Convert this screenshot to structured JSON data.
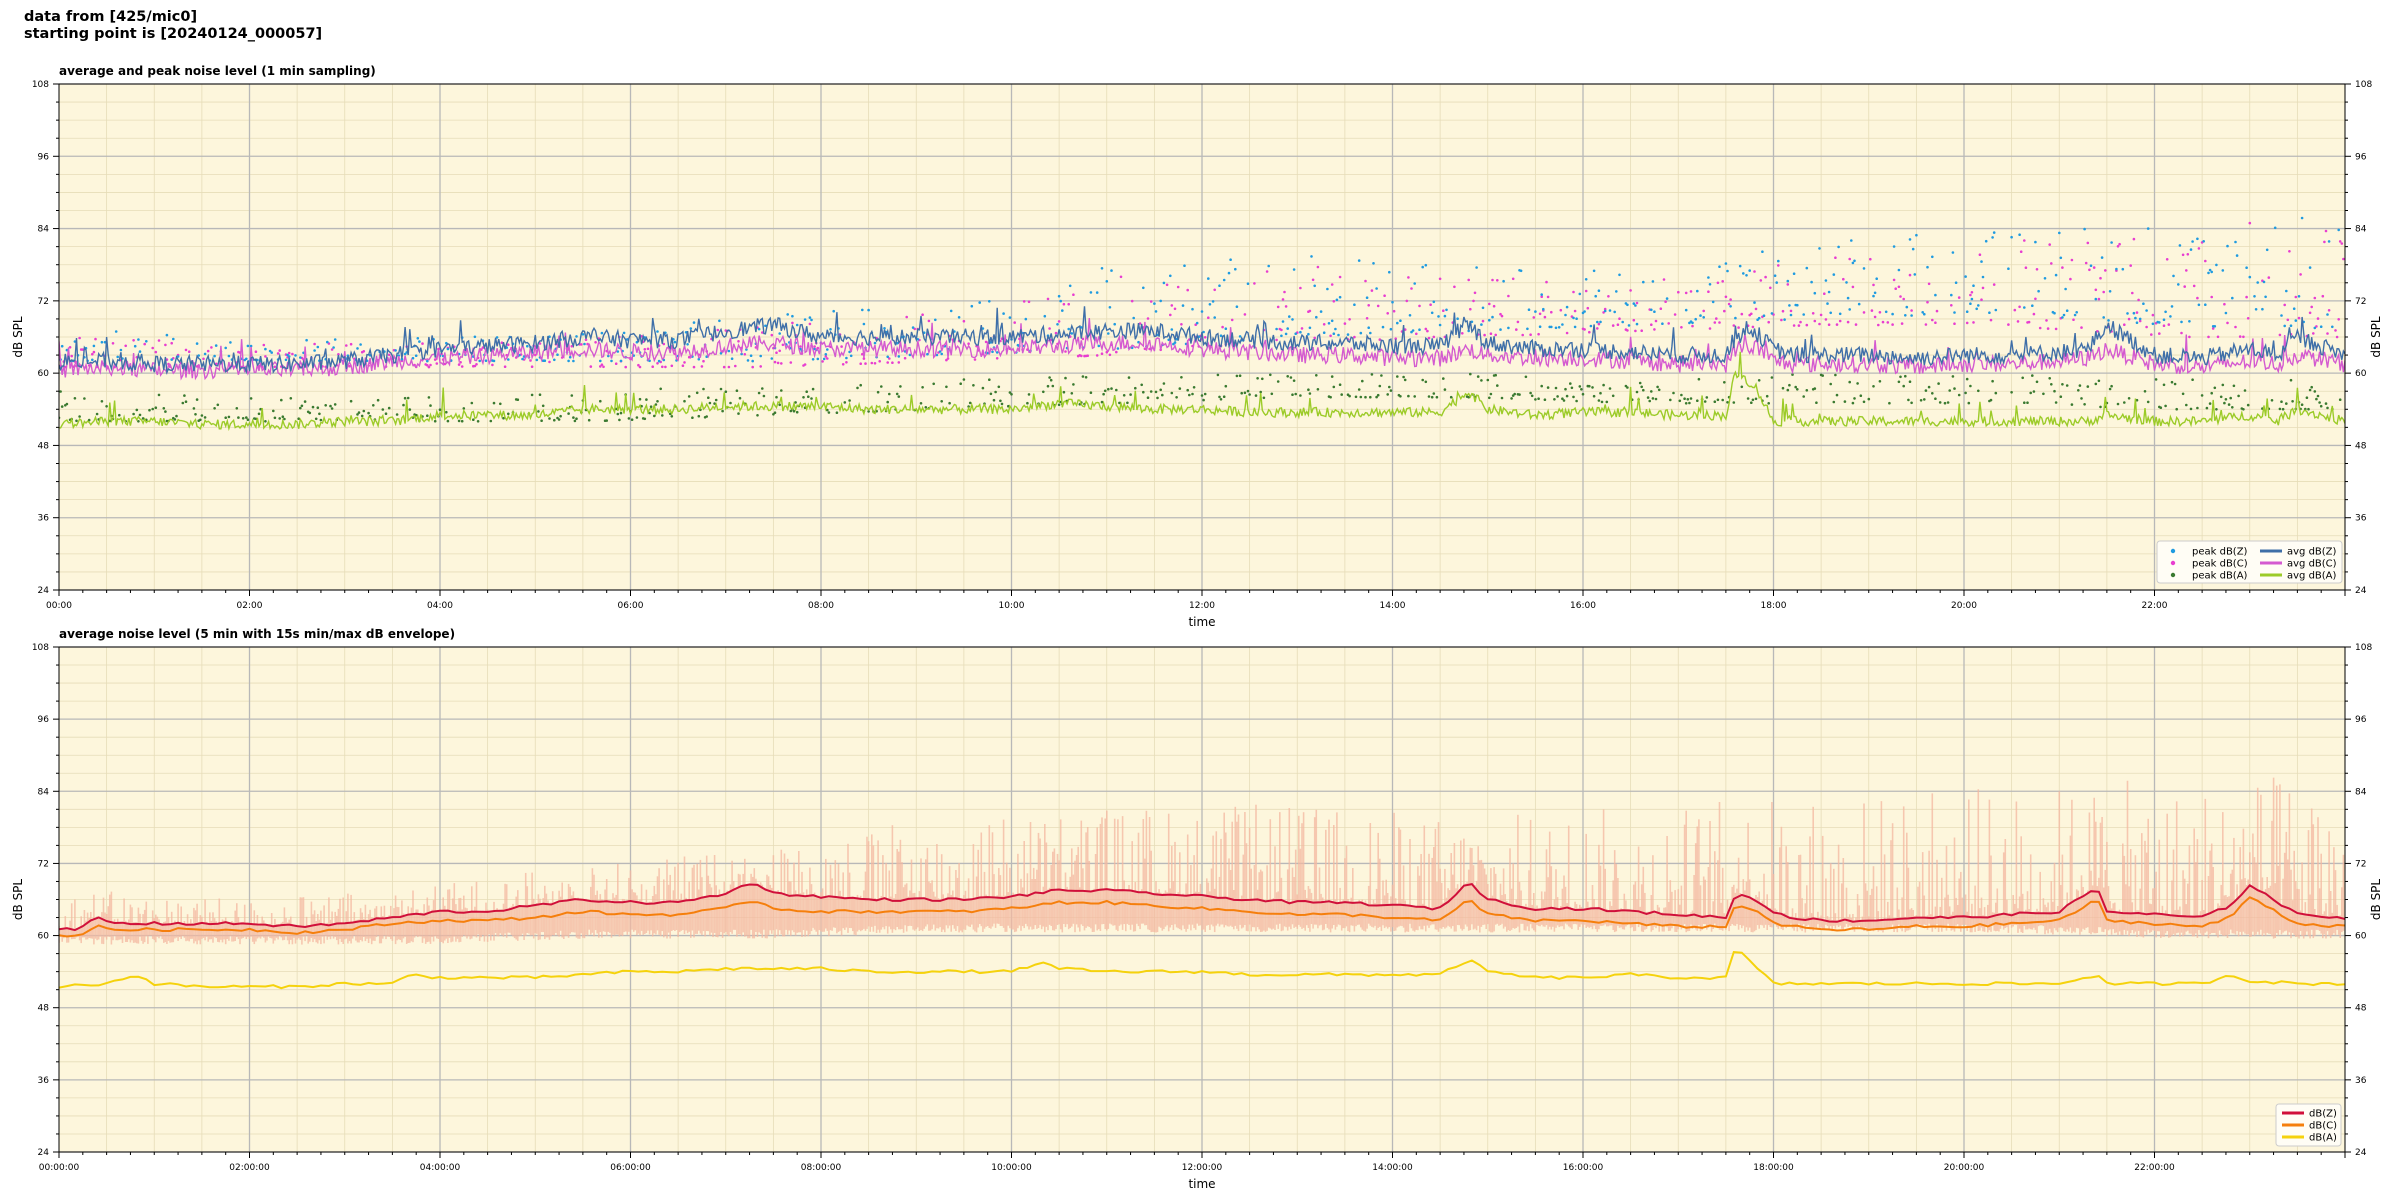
{
  "header": {
    "line1": "data from [425/mic0]",
    "line2": "starting point is [20240124_000057]"
  },
  "chart_data": [
    {
      "type": "scatter+line",
      "title": "average and peak noise level (1 min sampling)",
      "xlabel": "time",
      "ylabel": "dB SPL",
      "xlim_hours": [
        0,
        24
      ],
      "ylim": [
        24,
        108
      ],
      "yticks": [
        24,
        36,
        48,
        60,
        72,
        84,
        96,
        108
      ],
      "xticks": [
        "00:00",
        "02:00",
        "04:00",
        "06:00",
        "08:00",
        "10:00",
        "12:00",
        "14:00",
        "16:00",
        "18:00",
        "20:00",
        "22:00"
      ],
      "grid": true,
      "legend_position": "lower-right",
      "colors": {
        "background": "#fdf6dc",
        "peak_z": "#1f9be0",
        "peak_c": "#e83ed0",
        "peak_a": "#3a7a30",
        "avg_z": "#3f6fa8",
        "avg_c": "#d45ad0",
        "avg_a": "#9ccb28"
      },
      "legend": [
        {
          "label": "peak dB(Z)",
          "kind": "dot",
          "series": "peak_z"
        },
        {
          "label": "peak dB(C)",
          "kind": "dot",
          "series": "peak_c"
        },
        {
          "label": "peak dB(A)",
          "kind": "dot",
          "series": "peak_a"
        },
        {
          "label": "avg dB(Z)",
          "kind": "line",
          "series": "avg_z"
        },
        {
          "label": "avg dB(C)",
          "kind": "line",
          "series": "avg_c"
        },
        {
          "label": "avg dB(A)",
          "kind": "line",
          "series": "avg_a"
        }
      ],
      "series": [
        {
          "id": "avg_z",
          "x": [
            0,
            0.5,
            1,
            1.5,
            2,
            2.5,
            3,
            3.5,
            4,
            4.5,
            5,
            5.5,
            6,
            6.5,
            7,
            7.5,
            8,
            8.5,
            9,
            9.5,
            10,
            10.5,
            11,
            11.5,
            12,
            12.5,
            13,
            13.5,
            14,
            14.5,
            14.8,
            15,
            15.5,
            16,
            16.5,
            17,
            17.5,
            17.6,
            17.8,
            18,
            18.2,
            18.5,
            19,
            19.5,
            20,
            20.5,
            21,
            21.3,
            21.5,
            22,
            22.5,
            23,
            23.3,
            23.5,
            24
          ],
          "y": [
            62,
            62,
            61.5,
            61.5,
            61.5,
            61.5,
            62,
            63,
            64,
            64.5,
            65,
            66,
            65.5,
            65.5,
            67,
            68,
            66,
            66,
            66,
            66,
            66,
            66.5,
            67,
            67,
            66,
            65.5,
            65,
            65,
            64.5,
            64.5,
            68,
            65,
            64,
            64,
            63.5,
            63,
            63,
            66,
            67,
            64,
            63,
            63,
            63,
            62.5,
            63,
            63,
            63.5,
            64,
            68,
            63,
            62.5,
            64,
            63,
            66,
            63
          ]
        },
        {
          "id": "avg_c",
          "x": [
            0,
            0.5,
            1,
            1.5,
            2,
            2.5,
            3,
            3.5,
            4,
            4.5,
            5,
            5.5,
            6,
            6.5,
            7,
            7.5,
            8,
            8.5,
            9,
            9.5,
            10,
            10.5,
            11,
            11.5,
            12,
            12.5,
            13,
            13.5,
            14,
            14.5,
            14.8,
            15,
            15.5,
            16,
            16.5,
            17,
            17.5,
            17.6,
            17.8,
            18,
            18.2,
            18.5,
            19,
            19.5,
            20,
            20.5,
            21,
            21.3,
            21.5,
            22,
            22.5,
            23,
            23.3,
            23.5,
            24
          ],
          "y": [
            60.5,
            61,
            60.5,
            60.5,
            60.5,
            60.5,
            61,
            62,
            62.5,
            63,
            63.5,
            64,
            63.5,
            63.5,
            64.5,
            65,
            64,
            64,
            64,
            64,
            64,
            64.5,
            65,
            65,
            64,
            63.5,
            63,
            63,
            62.5,
            62.5,
            64,
            63,
            62.5,
            62.5,
            62,
            61.5,
            61.5,
            64,
            64.5,
            62,
            61.5,
            61.5,
            61.5,
            61,
            61.5,
            61.5,
            62,
            62.5,
            64,
            61.5,
            61,
            62,
            61.5,
            63,
            61.5
          ]
        },
        {
          "id": "avg_a",
          "x": [
            0,
            0.5,
            1,
            1.5,
            2,
            2.5,
            3,
            3.5,
            4,
            4.5,
            5,
            5.5,
            6,
            6.5,
            7,
            7.5,
            8,
            8.5,
            9,
            9.5,
            10,
            10.5,
            11,
            11.5,
            12,
            12.5,
            13,
            13.5,
            14,
            14.5,
            14.8,
            15,
            15.5,
            16,
            16.5,
            17,
            17.5,
            17.6,
            17.8,
            18,
            18.2,
            18.5,
            19,
            19.5,
            20,
            20.5,
            21,
            21.3,
            21.5,
            22,
            22.5,
            23,
            23.3,
            23.5,
            24
          ],
          "y": [
            51.5,
            52,
            52,
            51.5,
            51.5,
            51.5,
            52,
            52,
            53,
            53,
            53,
            54,
            54,
            54,
            54.5,
            54.5,
            54.5,
            54,
            54,
            54,
            54,
            55,
            54.5,
            54,
            54,
            53.5,
            53.5,
            53.5,
            53.5,
            53.5,
            57,
            54,
            53,
            53.5,
            53.5,
            53,
            53,
            60,
            58,
            52,
            52,
            52,
            52,
            52,
            52,
            52,
            52,
            52,
            53,
            52,
            52,
            53,
            52,
            54,
            52
          ]
        },
        {
          "id": "peak_z",
          "band_low": [
            62,
            62,
            62,
            62,
            62,
            63,
            64,
            66,
            67,
            68,
            69,
            70,
            68,
            67
          ],
          "band_high": [
            68,
            66,
            66,
            67,
            70,
            72,
            78,
            80,
            78,
            77,
            82,
            84,
            86,
            88
          ]
        },
        {
          "id": "peak_c",
          "band_low": [
            61,
            61,
            61,
            61,
            61,
            62,
            63,
            65,
            66,
            67,
            68,
            68,
            66,
            66
          ],
          "band_high": [
            66,
            65,
            65,
            66,
            68,
            70,
            76,
            78,
            76,
            75,
            80,
            82,
            84,
            86
          ]
        },
        {
          "id": "peak_a",
          "band_low": [
            52,
            52,
            52,
            52,
            53,
            54,
            55,
            56,
            56,
            55,
            55,
            55,
            54,
            54
          ],
          "band_high": [
            57,
            56,
            56,
            57,
            58,
            59,
            60,
            60,
            60,
            59,
            60,
            60,
            59,
            59
          ]
        }
      ]
    },
    {
      "type": "line",
      "title": "average noise level (5 min with 15s min/max dB envelope)",
      "xlabel": "time",
      "ylabel": "dB SPL",
      "xlim_hours": [
        0,
        24
      ],
      "ylim": [
        24,
        108
      ],
      "yticks": [
        24,
        36,
        48,
        60,
        72,
        84,
        96,
        108
      ],
      "xticks": [
        "00:00:00",
        "02:00:00",
        "04:00:00",
        "06:00:00",
        "08:00:00",
        "10:00:00",
        "12:00:00",
        "14:00:00",
        "16:00:00",
        "18:00:00",
        "20:00:00",
        "22:00:00"
      ],
      "grid": true,
      "legend_position": "lower-right",
      "colors": {
        "background": "#fdf6dc",
        "dBZ": "#d0103a",
        "dBC": "#f57f0c",
        "dBA": "#f5d20c",
        "envelope": "#f4b8a0"
      },
      "legend": [
        {
          "label": "dB(Z)",
          "series": "dBZ"
        },
        {
          "label": "dB(C)",
          "series": "dBC"
        },
        {
          "label": "dB(A)",
          "series": "dBA"
        }
      ],
      "series": [
        {
          "id": "dBZ",
          "x": [
            0,
            0.2,
            0.4,
            0.6,
            1,
            1.5,
            2,
            2.5,
            3,
            3.5,
            4,
            4.5,
            5,
            5.5,
            6,
            6.5,
            7,
            7.3,
            7.5,
            8,
            8.5,
            9,
            9.5,
            10,
            10.5,
            11,
            11.5,
            12,
            12.5,
            13,
            13.5,
            14,
            14.5,
            14.8,
            15,
            15.5,
            16,
            16.5,
            17,
            17.5,
            17.6,
            17.8,
            18,
            18.2,
            18.5,
            19,
            19.5,
            20,
            20.5,
            21,
            21.4,
            21.5,
            22,
            22.5,
            22.8,
            23,
            23.5,
            24
          ],
          "y": [
            61,
            61,
            63,
            62,
            62,
            62,
            62,
            61.5,
            62,
            63,
            64,
            64,
            65,
            66,
            65.5,
            65.5,
            67,
            69,
            67,
            66.5,
            66,
            66,
            66,
            66.5,
            67.5,
            67.5,
            67,
            66.5,
            66,
            65.5,
            65.5,
            65,
            64.5,
            69,
            66,
            64.5,
            64.5,
            64,
            63.5,
            63,
            67,
            66,
            64,
            63,
            62.5,
            62.5,
            63,
            63,
            63.5,
            64,
            68,
            64,
            63.5,
            63,
            65,
            68.5,
            63.5,
            63
          ]
        },
        {
          "id": "dBC",
          "x": [
            0,
            0.2,
            0.4,
            0.6,
            1,
            1.5,
            2,
            2.5,
            3,
            3.5,
            4,
            4.5,
            5,
            5.5,
            6,
            6.5,
            7,
            7.3,
            7.5,
            8,
            8.5,
            9,
            9.5,
            10,
            10.5,
            11,
            11.5,
            12,
            12.5,
            13,
            13.5,
            14,
            14.5,
            14.8,
            15,
            15.5,
            16,
            16.5,
            17,
            17.5,
            17.6,
            17.8,
            18,
            18.2,
            18.5,
            19,
            19.5,
            20,
            20.5,
            21,
            21.4,
            21.5,
            22,
            22.5,
            22.8,
            23,
            23.5,
            24
          ],
          "y": [
            60,
            60,
            61.5,
            61,
            61,
            61,
            61,
            60.5,
            61,
            62,
            62.5,
            62.5,
            63,
            64,
            63.5,
            63.5,
            64.5,
            66,
            64.5,
            64,
            64,
            64,
            64,
            64.5,
            65.5,
            65.5,
            65,
            64.5,
            64,
            63.5,
            63.5,
            63,
            62.5,
            66,
            63.5,
            62.5,
            62.5,
            62,
            61.5,
            61.5,
            65,
            64.5,
            62,
            61.5,
            61,
            61,
            61.5,
            61.5,
            62,
            62.5,
            66,
            62.5,
            62,
            61.5,
            63,
            66.5,
            62,
            61.5
          ]
        },
        {
          "id": "dBA",
          "x": [
            0,
            0.5,
            0.8,
            1,
            1.5,
            2,
            2.5,
            3,
            3.5,
            3.7,
            4,
            4.5,
            5,
            5.5,
            6,
            6.5,
            7,
            7.5,
            8,
            8.5,
            9,
            9.5,
            10,
            10.3,
            10.5,
            11,
            11.5,
            12,
            12.5,
            13,
            13.5,
            14,
            14.5,
            14.8,
            15,
            15.5,
            16,
            16.5,
            17,
            17.5,
            17.6,
            17.8,
            18,
            18.2,
            18.5,
            19,
            19.5,
            20,
            20.5,
            21,
            21.4,
            21.5,
            22,
            22.5,
            22.8,
            23,
            23.5,
            24
          ],
          "y": [
            51.5,
            52,
            53.5,
            52,
            51.5,
            51.5,
            51.5,
            52,
            52,
            53.5,
            53,
            53,
            53,
            53.5,
            54,
            54,
            54.5,
            54.5,
            54.5,
            54,
            54,
            54,
            54,
            55.5,
            54.5,
            54,
            54,
            54,
            53.5,
            53.5,
            53.5,
            53.5,
            53.5,
            56,
            54,
            53,
            53,
            53.5,
            53,
            53,
            58,
            55,
            52,
            52,
            52,
            52,
            52,
            52,
            52,
            52,
            53.5,
            52,
            52,
            52,
            53.5,
            52.5,
            52,
            52
          ]
        },
        {
          "id": "envelope",
          "band_low": [
            60,
            60,
            60,
            61,
            61,
            62,
            62,
            62,
            62,
            62,
            62,
            62,
            61,
            61
          ],
          "band_high": [
            68,
            66,
            68,
            72,
            75,
            80,
            82,
            82,
            80,
            82,
            84,
            85,
            86,
            88
          ]
        }
      ]
    }
  ]
}
